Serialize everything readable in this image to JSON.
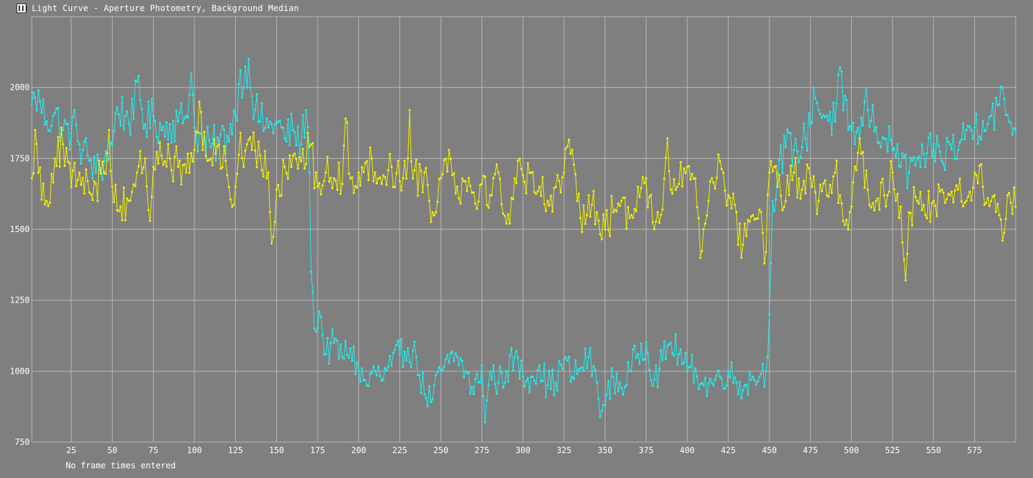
{
  "window": {
    "title": "Light Curve - Aperture Photometry, Background Median"
  },
  "footer": {
    "note": "No frame times entered"
  },
  "colors": {
    "background": "#7f7f7f",
    "grid": "#b8b8b8",
    "series_cyan": "#1ef0f0",
    "series_yellow": "#f2f200",
    "text": "#ffffff"
  },
  "chart_data": {
    "type": "line",
    "title": "",
    "xlabel": "",
    "ylabel": "",
    "xlim": [
      1,
      600
    ],
    "ylim": [
      750,
      2250
    ],
    "grid": true,
    "legend": "none",
    "x_ticks": [
      25,
      50,
      75,
      100,
      125,
      150,
      175,
      200,
      225,
      250,
      275,
      300,
      325,
      350,
      375,
      400,
      425,
      450,
      475,
      500,
      525,
      550,
      575
    ],
    "y_ticks": [
      750,
      1000,
      1250,
      1500,
      1750,
      2000
    ],
    "x_tick_labels": [
      "25",
      "50",
      "75",
      "100",
      "125",
      "150",
      "175",
      "200",
      "225",
      "250",
      "275",
      "300",
      "325",
      "350",
      "375",
      "400",
      "425",
      "450",
      "475",
      "500",
      "525",
      "550",
      "575"
    ],
    "y_tick_labels": [
      "750",
      "1000",
      "1250",
      "1500",
      "1750",
      "2000"
    ],
    "series": [
      {
        "color": "#1ef0f0",
        "keypoints": [
          [
            1,
            1940
          ],
          [
            3,
            1965
          ],
          [
            6,
            1950
          ],
          [
            10,
            1880
          ],
          [
            15,
            1910
          ],
          [
            20,
            1850
          ],
          [
            25,
            1840
          ],
          [
            28,
            1870
          ],
          [
            30,
            1800
          ],
          [
            35,
            1760
          ],
          [
            40,
            1700
          ],
          [
            45,
            1740
          ],
          [
            50,
            1800
          ],
          [
            53,
            1930
          ],
          [
            58,
            1900
          ],
          [
            63,
            1890
          ],
          [
            65,
            2020
          ],
          [
            70,
            1870
          ],
          [
            75,
            1900
          ],
          [
            80,
            1850
          ],
          [
            85,
            1870
          ],
          [
            90,
            1880
          ],
          [
            95,
            1900
          ],
          [
            98,
            2050
          ],
          [
            100,
            1860
          ],
          [
            105,
            1800
          ],
          [
            110,
            1790
          ],
          [
            115,
            1810
          ],
          [
            120,
            1830
          ],
          [
            125,
            1900
          ],
          [
            128,
            2060
          ],
          [
            130,
            2000
          ],
          [
            133,
            2100
          ],
          [
            135,
            1970
          ],
          [
            140,
            1880
          ],
          [
            145,
            1860
          ],
          [
            150,
            1880
          ],
          [
            155,
            1820
          ],
          [
            160,
            1850
          ],
          [
            165,
            1800
          ],
          [
            168,
            1920
          ],
          [
            170,
            1700
          ],
          [
            171,
            1350
          ],
          [
            172,
            1280
          ],
          [
            174,
            1140
          ],
          [
            176,
            1210
          ],
          [
            180,
            1060
          ],
          [
            185,
            1100
          ],
          [
            190,
            1050
          ],
          [
            195,
            1080
          ],
          [
            200,
            1000
          ],
          [
            205,
            950
          ],
          [
            210,
            1000
          ],
          [
            215,
            970
          ],
          [
            220,
            1020
          ],
          [
            225,
            1060
          ],
          [
            230,
            1080
          ],
          [
            235,
            1050
          ],
          [
            240,
            920
          ],
          [
            245,
            900
          ],
          [
            250,
            1000
          ],
          [
            255,
            1030
          ],
          [
            260,
            1050
          ],
          [
            265,
            1000
          ],
          [
            270,
            920
          ],
          [
            275,
            1020
          ],
          [
            277,
            820
          ],
          [
            280,
            1000
          ],
          [
            285,
            960
          ],
          [
            290,
            1000
          ],
          [
            295,
            1050
          ],
          [
            300,
            980
          ],
          [
            305,
            980
          ],
          [
            310,
            1020
          ],
          [
            315,
            950
          ],
          [
            320,
            960
          ],
          [
            325,
            1040
          ],
          [
            330,
            980
          ],
          [
            335,
            1010
          ],
          [
            340,
            1050
          ],
          [
            345,
            960
          ],
          [
            348,
            860
          ],
          [
            350,
            880
          ],
          [
            355,
            980
          ],
          [
            360,
            940
          ],
          [
            365,
            1000
          ],
          [
            370,
            1060
          ],
          [
            375,
            1100
          ],
          [
            380,
            970
          ],
          [
            385,
            1040
          ],
          [
            390,
            1100
          ],
          [
            395,
            1060
          ],
          [
            400,
            1000
          ],
          [
            405,
            1010
          ],
          [
            410,
            950
          ],
          [
            415,
            960
          ],
          [
            420,
            980
          ],
          [
            425,
            1000
          ],
          [
            430,
            960
          ],
          [
            435,
            950
          ],
          [
            440,
            980
          ],
          [
            445,
            990
          ],
          [
            448,
            1000
          ],
          [
            449,
            1050
          ],
          [
            450,
            1200
          ],
          [
            451,
            1380
          ],
          [
            452,
            1600
          ],
          [
            455,
            1700
          ],
          [
            460,
            1790
          ],
          [
            465,
            1780
          ],
          [
            470,
            1790
          ],
          [
            475,
            1870
          ],
          [
            477,
            2000
          ],
          [
            480,
            1920
          ],
          [
            485,
            1900
          ],
          [
            490,
            1880
          ],
          [
            493,
            2070
          ],
          [
            495,
            1920
          ],
          [
            500,
            1850
          ],
          [
            505,
            1820
          ],
          [
            508,
            1950
          ],
          [
            510,
            1920
          ],
          [
            515,
            1860
          ],
          [
            520,
            1820
          ],
          [
            525,
            1780
          ],
          [
            528,
            1800
          ],
          [
            530,
            1720
          ],
          [
            535,
            1700
          ],
          [
            540,
            1750
          ],
          [
            545,
            1720
          ],
          [
            550,
            1800
          ],
          [
            555,
            1740
          ],
          [
            560,
            1800
          ],
          [
            565,
            1780
          ],
          [
            570,
            1850
          ],
          [
            575,
            1860
          ],
          [
            580,
            1880
          ],
          [
            585,
            1900
          ],
          [
            590,
            1940
          ],
          [
            593,
            1960
          ],
          [
            596,
            1880
          ],
          [
            600,
            1850
          ]
        ]
      },
      {
        "color": "#f2f200",
        "keypoints": [
          [
            1,
            1680
          ],
          [
            3,
            1850
          ],
          [
            5,
            1700
          ],
          [
            10,
            1600
          ],
          [
            15,
            1750
          ],
          [
            20,
            1800
          ],
          [
            25,
            1650
          ],
          [
            30,
            1700
          ],
          [
            35,
            1670
          ],
          [
            40,
            1660
          ],
          [
            45,
            1700
          ],
          [
            48,
            1850
          ],
          [
            50,
            1650
          ],
          [
            55,
            1580
          ],
          [
            60,
            1600
          ],
          [
            65,
            1700
          ],
          [
            70,
            1750
          ],
          [
            73,
            1530
          ],
          [
            75,
            1720
          ],
          [
            80,
            1760
          ],
          [
            85,
            1750
          ],
          [
            90,
            1720
          ],
          [
            95,
            1700
          ],
          [
            100,
            1780
          ],
          [
            103,
            1950
          ],
          [
            105,
            1780
          ],
          [
            110,
            1750
          ],
          [
            115,
            1800
          ],
          [
            120,
            1690
          ],
          [
            123,
            1580
          ],
          [
            125,
            1650
          ],
          [
            128,
            1840
          ],
          [
            130,
            1720
          ],
          [
            135,
            1780
          ],
          [
            140,
            1760
          ],
          [
            145,
            1700
          ],
          [
            147,
            1450
          ],
          [
            150,
            1640
          ],
          [
            155,
            1720
          ],
          [
            160,
            1760
          ],
          [
            165,
            1740
          ],
          [
            170,
            1790
          ],
          [
            175,
            1650
          ],
          [
            180,
            1700
          ],
          [
            185,
            1680
          ],
          [
            190,
            1660
          ],
          [
            192,
            1890
          ],
          [
            195,
            1680
          ],
          [
            200,
            1700
          ],
          [
            205,
            1740
          ],
          [
            210,
            1700
          ],
          [
            215,
            1690
          ],
          [
            220,
            1720
          ],
          [
            225,
            1670
          ],
          [
            230,
            1750
          ],
          [
            231,
            1920
          ],
          [
            233,
            1680
          ],
          [
            240,
            1700
          ],
          [
            245,
            1560
          ],
          [
            250,
            1680
          ],
          [
            255,
            1780
          ],
          [
            260,
            1650
          ],
          [
            265,
            1670
          ],
          [
            270,
            1630
          ],
          [
            275,
            1660
          ],
          [
            280,
            1620
          ],
          [
            285,
            1700
          ],
          [
            290,
            1520
          ],
          [
            295,
            1680
          ],
          [
            300,
            1690
          ],
          [
            305,
            1700
          ],
          [
            310,
            1650
          ],
          [
            315,
            1600
          ],
          [
            320,
            1650
          ],
          [
            325,
            1700
          ],
          [
            330,
            1780
          ],
          [
            333,
            1600
          ],
          [
            335,
            1540
          ],
          [
            340,
            1620
          ],
          [
            345,
            1560
          ],
          [
            350,
            1500
          ],
          [
            355,
            1560
          ],
          [
            360,
            1600
          ],
          [
            365,
            1540
          ],
          [
            370,
            1650
          ],
          [
            375,
            1680
          ],
          [
            380,
            1500
          ],
          [
            385,
            1570
          ],
          [
            388,
            1820
          ],
          [
            390,
            1640
          ],
          [
            395,
            1660
          ],
          [
            400,
            1720
          ],
          [
            405,
            1680
          ],
          [
            408,
            1400
          ],
          [
            410,
            1500
          ],
          [
            413,
            1600
          ],
          [
            415,
            1680
          ],
          [
            420,
            1740
          ],
          [
            425,
            1620
          ],
          [
            430,
            1560
          ],
          [
            433,
            1400
          ],
          [
            435,
            1520
          ],
          [
            440,
            1550
          ],
          [
            445,
            1560
          ],
          [
            447,
            1380
          ],
          [
            450,
            1700
          ],
          [
            453,
            1720
          ],
          [
            455,
            1650
          ],
          [
            460,
            1600
          ],
          [
            465,
            1700
          ],
          [
            470,
            1640
          ],
          [
            475,
            1680
          ],
          [
            480,
            1600
          ],
          [
            485,
            1620
          ],
          [
            490,
            1700
          ],
          [
            493,
            1620
          ],
          [
            495,
            1530
          ],
          [
            500,
            1580
          ],
          [
            505,
            1820
          ],
          [
            510,
            1640
          ],
          [
            515,
            1600
          ],
          [
            520,
            1620
          ],
          [
            525,
            1700
          ],
          [
            530,
            1580
          ],
          [
            533,
            1320
          ],
          [
            535,
            1560
          ],
          [
            540,
            1600
          ],
          [
            545,
            1550
          ],
          [
            550,
            1600
          ],
          [
            555,
            1640
          ],
          [
            560,
            1620
          ],
          [
            565,
            1640
          ],
          [
            570,
            1600
          ],
          [
            575,
            1700
          ],
          [
            580,
            1650
          ],
          [
            585,
            1600
          ],
          [
            590,
            1550
          ],
          [
            592,
            1460
          ],
          [
            595,
            1620
          ],
          [
            600,
            1580
          ]
        ]
      }
    ]
  }
}
